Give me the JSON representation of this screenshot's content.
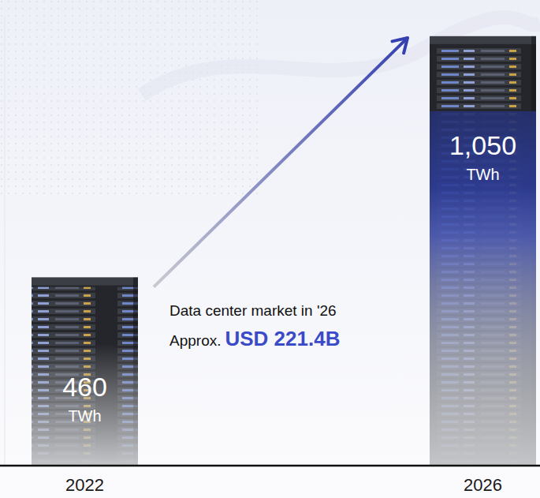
{
  "chart_data": {
    "type": "bar",
    "categories": [
      "2022",
      "2026"
    ],
    "values": [
      460,
      1050
    ],
    "value_labels": [
      "460",
      "1,050"
    ],
    "data_labels": true,
    "ylabel": "TWh",
    "ylim": [
      0,
      1100
    ],
    "tick_labels": "x",
    "grid": false,
    "annotations": [
      {
        "text": "Data center market in '26"
      },
      {
        "text": "Approx."
      },
      {
        "text": "USD 221.4B"
      }
    ]
  }
}
